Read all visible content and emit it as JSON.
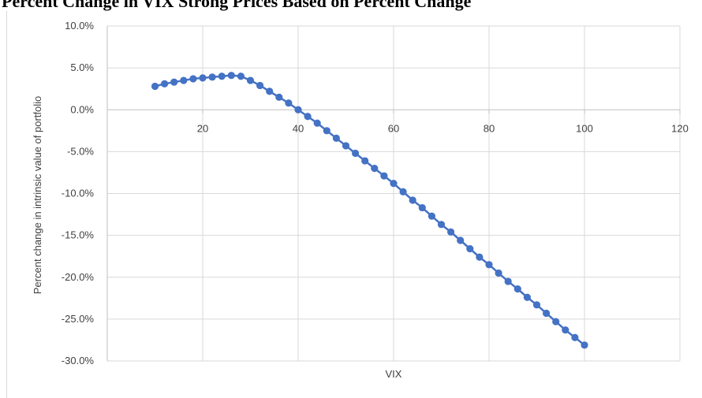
{
  "chart_data": {
    "type": "scatter",
    "title": "Percent Change in VIX Strong Prices Based on Percent Change",
    "xlabel": "VIX",
    "ylabel": "Percent change in intrinsic value of portfolio",
    "xlim": [
      0,
      120
    ],
    "ylim": [
      -30,
      10
    ],
    "x_ticks": [
      "20",
      "40",
      "60",
      "80",
      "100",
      "120"
    ],
    "y_ticks": [
      "10.0%",
      "5.0%",
      "0.0%",
      "-5.0%",
      "-10.0%",
      "-15.0%",
      "-20.0%",
      "-25.0%",
      "-30.0%"
    ],
    "grid": true,
    "series": [
      {
        "color": "#4472c4",
        "x": [
          10,
          12,
          14,
          16,
          18,
          20,
          22,
          24,
          26,
          28,
          30,
          32,
          34,
          36,
          38,
          40,
          42,
          44,
          46,
          48,
          50,
          52,
          54,
          56,
          58,
          60,
          62,
          64,
          66,
          68,
          70,
          72,
          74,
          76,
          78,
          80,
          82,
          84,
          86,
          88,
          90,
          92,
          94,
          96,
          98,
          100
        ],
        "y": [
          2.8,
          3.1,
          3.3,
          3.5,
          3.7,
          3.8,
          3.9,
          4.0,
          4.1,
          4.0,
          3.5,
          2.9,
          2.2,
          1.5,
          0.8,
          0.0,
          -0.8,
          -1.6,
          -2.5,
          -3.4,
          -4.3,
          -5.2,
          -6.1,
          -7.0,
          -7.9,
          -8.8,
          -9.8,
          -10.8,
          -11.7,
          -12.7,
          -13.7,
          -14.6,
          -15.6,
          -16.6,
          -17.6,
          -18.5,
          -19.5,
          -20.5,
          -21.4,
          -22.4,
          -23.3,
          -24.3,
          -25.3,
          -26.3,
          -27.2,
          -28.1
        ]
      }
    ]
  }
}
